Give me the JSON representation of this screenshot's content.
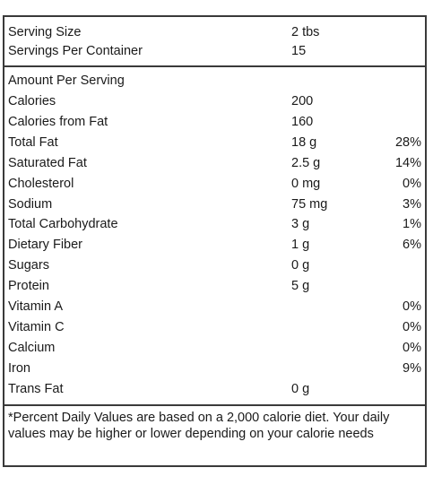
{
  "header": {
    "serving_size_label": "Serving Size",
    "serving_size_value": "2 tbs",
    "servings_label": "Servings Per Container",
    "servings_value": "15"
  },
  "amount_header": "Amount Per Serving",
  "nutrients": [
    {
      "label": "Calories",
      "amount": "200",
      "dv": ""
    },
    {
      "label": "Calories from Fat",
      "amount": "160",
      "dv": ""
    },
    {
      "label": "Total Fat",
      "amount": "18 g",
      "dv": "28%"
    },
    {
      "label": "Saturated Fat",
      "amount": "2.5 g",
      "dv": "14%"
    },
    {
      "label": "Cholesterol",
      "amount": "0 mg",
      "dv": "0%"
    },
    {
      "label": "Sodium",
      "amount": "75 mg",
      "dv": "3%"
    },
    {
      "label": "Total Carbohydrate",
      "amount": "3 g",
      "dv": "1%"
    },
    {
      "label": "Dietary Fiber",
      "amount": "1 g",
      "dv": "6%"
    },
    {
      "label": "Sugars",
      "amount": "0 g",
      "dv": ""
    },
    {
      "label": "Protein",
      "amount": "5 g",
      "dv": ""
    },
    {
      "label": "Vitamin A",
      "amount": "",
      "dv": "0%"
    },
    {
      "label": "Vitamin C",
      "amount": "",
      "dv": "0%"
    },
    {
      "label": "Calcium",
      "amount": "",
      "dv": "0%"
    },
    {
      "label": "Iron",
      "amount": "",
      "dv": "9%"
    },
    {
      "label": "Trans Fat",
      "amount": "0 g",
      "dv": ""
    }
  ],
  "footnote": "*Percent Daily Values are based on a 2,000 calorie diet. Your daily values may be higher or lower depending on your calorie needs"
}
